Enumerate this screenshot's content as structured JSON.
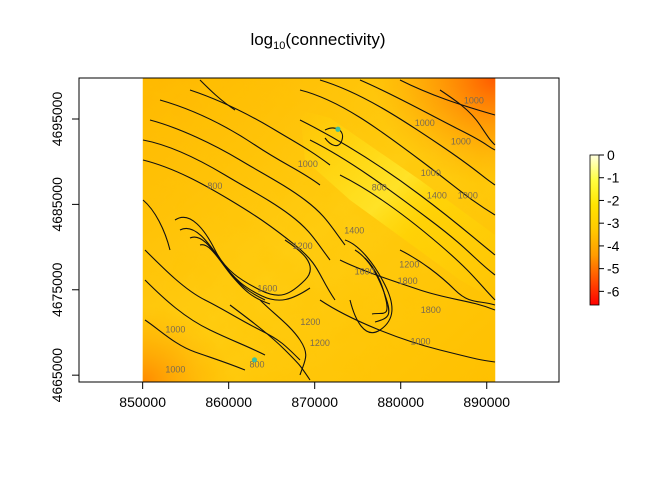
{
  "chart_data": {
    "type": "heatmap",
    "title_base": "log",
    "title_sub": "10",
    "title_rest": "(connectivity)",
    "x_ticks": [
      850000,
      860000,
      870000,
      880000,
      890000
    ],
    "y_ticks": [
      4665000,
      4675000,
      4685000,
      4695000
    ],
    "x_tick_labels": [
      "850000",
      "860000",
      "870000",
      "880000",
      "890000"
    ],
    "y_tick_labels": [
      "4665000",
      "4675000",
      "4685000",
      "4695000"
    ],
    "xlim": [
      842600,
      898400
    ],
    "ylim": [
      4664200,
      4699800
    ],
    "raster_extent": {
      "x": [
        850000,
        891000
      ],
      "y": [
        4664200,
        4699800
      ]
    },
    "color_scale": {
      "min": -6.6,
      "max": 0,
      "ticks": [
        0,
        -1,
        -2,
        -3,
        -4,
        -5,
        -6
      ],
      "tick_labels": [
        "0",
        "-1",
        "-2",
        "-3",
        "-4",
        "-5",
        "-6"
      ],
      "colors": [
        "#ff0000",
        "#ff5000",
        "#ff9c00",
        "#ffc800",
        "#ffe400",
        "#ffff40",
        "#ffffe0"
      ]
    },
    "contour_levels": [
      {
        "label": "1000",
        "x": 888500,
        "y": 4696800
      },
      {
        "label": "1000",
        "x": 882800,
        "y": 4694200
      },
      {
        "label": "1000",
        "x": 869200,
        "y": 4689400
      },
      {
        "label": "1000",
        "x": 883500,
        "y": 4688300
      },
      {
        "label": "1000",
        "x": 887800,
        "y": 4685700
      },
      {
        "label": "800",
        "x": 858400,
        "y": 4686800
      },
      {
        "label": "800",
        "x": 877500,
        "y": 4686600
      },
      {
        "label": "1400",
        "x": 884200,
        "y": 4685700
      },
      {
        "label": "1400",
        "x": 874600,
        "y": 4681600
      },
      {
        "label": "1200",
        "x": 868600,
        "y": 4679800
      },
      {
        "label": "1200",
        "x": 881000,
        "y": 4677600
      },
      {
        "label": "1200",
        "x": 870600,
        "y": 4668400
      },
      {
        "label": "1200",
        "x": 869500,
        "y": 4670900
      },
      {
        "label": "1600",
        "x": 875800,
        "y": 4676800
      },
      {
        "label": "1800",
        "x": 880800,
        "y": 4675700
      },
      {
        "label": "1600",
        "x": 864500,
        "y": 4674800
      },
      {
        "label": "1800",
        "x": 883500,
        "y": 4672300
      },
      {
        "label": "1000",
        "x": 853800,
        "y": 4670000
      },
      {
        "label": "1000",
        "x": 882300,
        "y": 4668600
      },
      {
        "label": "1000",
        "x": 853800,
        "y": 4665300
      },
      {
        "label": "800",
        "x": 863300,
        "y": 4665900
      },
      {
        "label": "1000",
        "x": 887000,
        "y": 4692000
      }
    ],
    "points": [
      {
        "x": 872700,
        "y": 4693800,
        "color": "#3cc0a0"
      },
      {
        "x": 863000,
        "y": 4666800,
        "color": "#3cc0a0"
      }
    ],
    "grid": false,
    "legend_position": "right"
  }
}
